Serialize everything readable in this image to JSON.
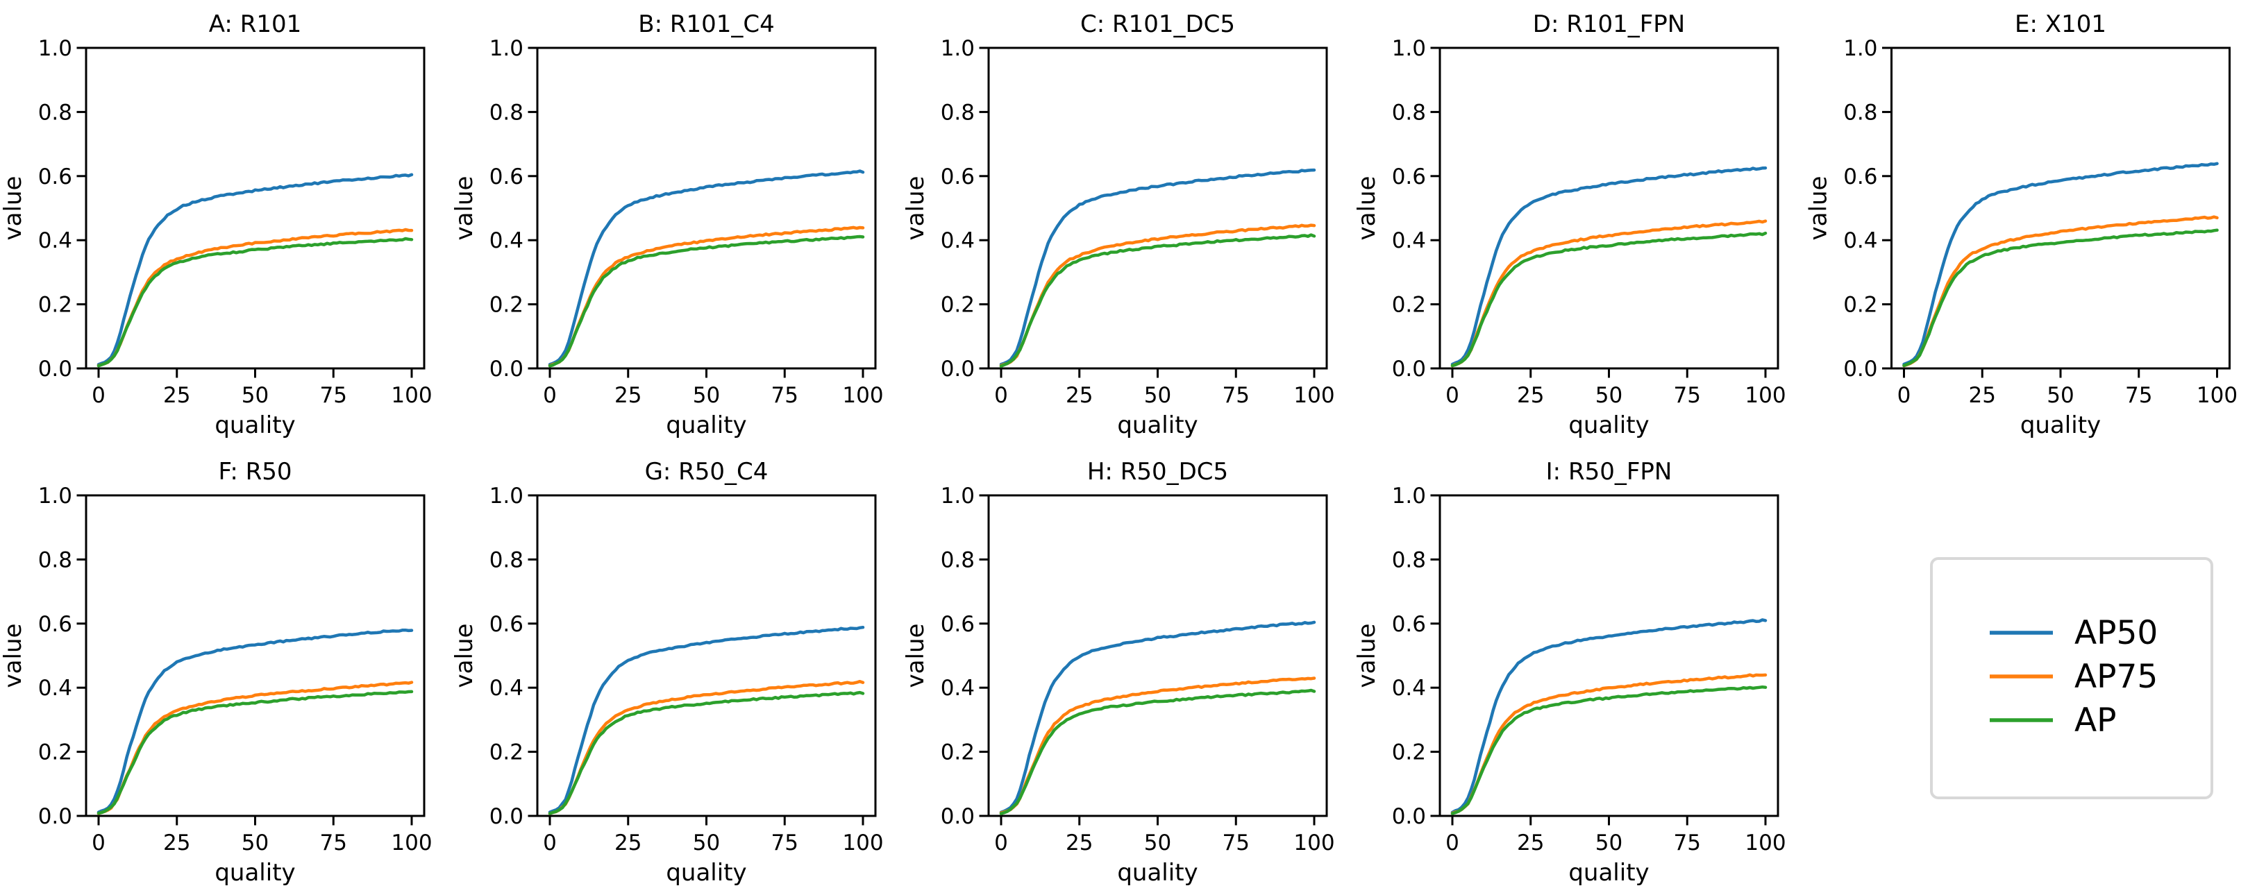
{
  "figure": {
    "background": "#ffffff",
    "rows": 2,
    "cols": 5
  },
  "chart_data": {
    "type": "line",
    "grid": false,
    "xlabel": "quality",
    "ylabel": "value",
    "xlim": [
      0,
      100
    ],
    "ylim": [
      0.0,
      1.0
    ],
    "xticks": [
      0,
      25,
      50,
      75,
      100
    ],
    "xticklabels": [
      "0",
      "25",
      "50",
      "75",
      "100"
    ],
    "yticks": [
      0.0,
      0.2,
      0.4,
      0.6,
      0.8,
      1.0
    ],
    "yticklabels": [
      "0.0",
      "0.2",
      "0.4",
      "0.6",
      "0.8",
      "1.0"
    ],
    "x": [
      0,
      5,
      10,
      15,
      20,
      25,
      30,
      35,
      40,
      45,
      50,
      55,
      60,
      65,
      70,
      75,
      80,
      85,
      90,
      95,
      100
    ],
    "legend": {
      "position": "lower-right-cell",
      "border_color": "#d8d8d8",
      "background": "#ffffff",
      "entries": [
        {
          "label": "AP50",
          "color": "#1f77b4"
        },
        {
          "label": "AP75",
          "color": "#ff7f0e"
        },
        {
          "label": "AP",
          "color": "#2ca02c"
        }
      ]
    },
    "subplots": [
      {
        "title": "A: R101",
        "series": [
          {
            "name": "AP50",
            "color": "#1f77b4",
            "values": [
              0.012,
              0.054,
              0.223,
              0.38,
              0.458,
              0.497,
              0.517,
              0.529,
              0.54,
              0.547,
              0.555,
              0.561,
              0.567,
              0.573,
              0.578,
              0.583,
              0.588,
              0.592,
              0.596,
              0.6,
              0.603
            ]
          },
          {
            "name": "AP75",
            "color": "#ff7f0e",
            "values": [
              0.009,
              0.039,
              0.153,
              0.259,
              0.315,
              0.341,
              0.356,
              0.368,
              0.377,
              0.384,
              0.391,
              0.396,
              0.401,
              0.406,
              0.41,
              0.415,
              0.419,
              0.422,
              0.426,
              0.429,
              0.432
            ]
          },
          {
            "name": "AP",
            "color": "#2ca02c",
            "values": [
              0.008,
              0.04,
              0.149,
              0.25,
              0.303,
              0.329,
              0.343,
              0.352,
              0.359,
              0.364,
              0.37,
              0.374,
              0.379,
              0.383,
              0.386,
              0.39,
              0.393,
              0.396,
              0.398,
              0.401,
              0.404
            ]
          }
        ]
      },
      {
        "title": "B: R101_C4",
        "series": [
          {
            "name": "AP50",
            "color": "#1f77b4",
            "values": [
              0.012,
              0.055,
              0.227,
              0.387,
              0.467,
              0.507,
              0.527,
              0.539,
              0.549,
              0.557,
              0.565,
              0.572,
              0.578,
              0.583,
              0.589,
              0.594,
              0.599,
              0.603,
              0.607,
              0.611,
              0.614
            ]
          },
          {
            "name": "AP75",
            "color": "#ff7f0e",
            "values": [
              0.009,
              0.04,
              0.156,
              0.264,
              0.321,
              0.348,
              0.363,
              0.375,
              0.384,
              0.391,
              0.398,
              0.403,
              0.409,
              0.414,
              0.418,
              0.422,
              0.426,
              0.43,
              0.433,
              0.437,
              0.44
            ]
          },
          {
            "name": "AP",
            "color": "#2ca02c",
            "values": [
              0.008,
              0.041,
              0.152,
              0.255,
              0.308,
              0.335,
              0.349,
              0.358,
              0.365,
              0.371,
              0.376,
              0.381,
              0.385,
              0.389,
              0.393,
              0.396,
              0.399,
              0.402,
              0.405,
              0.408,
              0.411
            ]
          }
        ]
      },
      {
        "title": "C: R101_DC5",
        "series": [
          {
            "name": "AP50",
            "color": "#1f77b4",
            "values": [
              0.012,
              0.056,
              0.229,
              0.389,
              0.47,
              0.51,
              0.53,
              0.543,
              0.553,
              0.561,
              0.569,
              0.575,
              0.582,
              0.587,
              0.593,
              0.598,
              0.603,
              0.607,
              0.611,
              0.615,
              0.618
            ]
          },
          {
            "name": "AP75",
            "color": "#ff7f0e",
            "values": [
              0.009,
              0.04,
              0.159,
              0.268,
              0.326,
              0.353,
              0.369,
              0.381,
              0.39,
              0.397,
              0.404,
              0.41,
              0.415,
              0.42,
              0.425,
              0.429,
              0.433,
              0.437,
              0.44,
              0.444,
              0.447
            ]
          },
          {
            "name": "AP",
            "color": "#2ca02c",
            "values": [
              0.008,
              0.042,
              0.154,
              0.257,
              0.311,
              0.338,
              0.352,
              0.361,
              0.369,
              0.374,
              0.38,
              0.384,
              0.389,
              0.393,
              0.397,
              0.4,
              0.403,
              0.406,
              0.409,
              0.412,
              0.415
            ]
          }
        ]
      },
      {
        "title": "D: R101_FPN",
        "series": [
          {
            "name": "AP50",
            "color": "#1f77b4",
            "values": [
              0.013,
              0.056,
              0.231,
              0.394,
              0.475,
              0.516,
              0.536,
              0.549,
              0.559,
              0.568,
              0.575,
              0.582,
              0.588,
              0.594,
              0.599,
              0.604,
              0.609,
              0.614,
              0.618,
              0.622,
              0.625
            ]
          },
          {
            "name": "AP75",
            "color": "#ff7f0e",
            "values": [
              0.009,
              0.041,
              0.163,
              0.275,
              0.335,
              0.363,
              0.379,
              0.391,
              0.4,
              0.408,
              0.415,
              0.421,
              0.426,
              0.431,
              0.436,
              0.441,
              0.445,
              0.448,
              0.452,
              0.456,
              0.459
            ]
          },
          {
            "name": "AP",
            "color": "#2ca02c",
            "values": [
              0.008,
              0.042,
              0.155,
              0.26,
              0.315,
              0.342,
              0.356,
              0.366,
              0.373,
              0.379,
              0.384,
              0.389,
              0.394,
              0.398,
              0.402,
              0.405,
              0.408,
              0.411,
              0.414,
              0.417,
              0.42
            ]
          }
        ]
      },
      {
        "title": "E: X101",
        "series": [
          {
            "name": "AP50",
            "color": "#1f77b4",
            "values": [
              0.013,
              0.057,
              0.236,
              0.401,
              0.484,
              0.526,
              0.547,
              0.559,
              0.57,
              0.578,
              0.586,
              0.593,
              0.599,
              0.605,
              0.611,
              0.616,
              0.621,
              0.626,
              0.63,
              0.634,
              0.637
            ]
          },
          {
            "name": "AP75",
            "color": "#ff7f0e",
            "values": [
              0.009,
              0.042,
              0.168,
              0.283,
              0.345,
              0.373,
              0.389,
              0.402,
              0.412,
              0.42,
              0.427,
              0.433,
              0.438,
              0.444,
              0.448,
              0.453,
              0.457,
              0.461,
              0.465,
              0.469,
              0.472
            ]
          },
          {
            "name": "AP",
            "color": "#2ca02c",
            "values": [
              0.009,
              0.043,
              0.159,
              0.267,
              0.323,
              0.35,
              0.365,
              0.374,
              0.382,
              0.388,
              0.393,
              0.398,
              0.403,
              0.407,
              0.411,
              0.415,
              0.418,
              0.421,
              0.424,
              0.427,
              0.43
            ]
          }
        ]
      },
      {
        "title": "F: R50",
        "series": [
          {
            "name": "AP50",
            "color": "#1f77b4",
            "values": [
              0.012,
              0.052,
              0.215,
              0.365,
              0.441,
              0.479,
              0.498,
              0.509,
              0.519,
              0.527,
              0.534,
              0.54,
              0.546,
              0.551,
              0.556,
              0.561,
              0.566,
              0.57,
              0.574,
              0.577,
              0.58
            ]
          },
          {
            "name": "AP75",
            "color": "#ff7f0e",
            "values": [
              0.008,
              0.037,
              0.147,
              0.249,
              0.303,
              0.328,
              0.342,
              0.354,
              0.362,
              0.369,
              0.375,
              0.381,
              0.386,
              0.39,
              0.394,
              0.398,
              0.402,
              0.405,
              0.409,
              0.412,
              0.415
            ]
          },
          {
            "name": "AP",
            "color": "#2ca02c",
            "values": [
              0.008,
              0.039,
              0.143,
              0.24,
              0.29,
              0.315,
              0.328,
              0.337,
              0.344,
              0.349,
              0.354,
              0.358,
              0.363,
              0.366,
              0.37,
              0.373,
              0.376,
              0.379,
              0.382,
              0.384,
              0.387
            ]
          }
        ]
      },
      {
        "title": "G: R50_C4",
        "series": [
          {
            "name": "AP50",
            "color": "#1f77b4",
            "values": [
              0.012,
              0.053,
              0.217,
              0.37,
              0.446,
              0.484,
              0.504,
              0.515,
              0.525,
              0.533,
              0.54,
              0.547,
              0.552,
              0.558,
              0.563,
              0.568,
              0.572,
              0.576,
              0.581,
              0.584,
              0.587
            ]
          },
          {
            "name": "AP75",
            "color": "#ff7f0e",
            "values": [
              0.008,
              0.038,
              0.148,
              0.251,
              0.305,
              0.33,
              0.345,
              0.356,
              0.364,
              0.372,
              0.378,
              0.383,
              0.388,
              0.393,
              0.397,
              0.401,
              0.405,
              0.408,
              0.412,
              0.415,
              0.418
            ]
          },
          {
            "name": "AP",
            "color": "#2ca02c",
            "values": [
              0.008,
              0.038,
              0.142,
              0.238,
              0.288,
              0.313,
              0.326,
              0.334,
              0.341,
              0.346,
              0.351,
              0.356,
              0.36,
              0.364,
              0.367,
              0.37,
              0.373,
              0.376,
              0.379,
              0.381,
              0.384
            ]
          }
        ]
      },
      {
        "title": "H: R50_DC5",
        "series": [
          {
            "name": "AP50",
            "color": "#1f77b4",
            "values": [
              0.012,
              0.054,
              0.223,
              0.38,
              0.458,
              0.497,
              0.517,
              0.529,
              0.54,
              0.547,
              0.555,
              0.561,
              0.567,
              0.573,
              0.578,
              0.583,
              0.588,
              0.592,
              0.597,
              0.6,
              0.603
            ]
          },
          {
            "name": "AP75",
            "color": "#ff7f0e",
            "values": [
              0.009,
              0.039,
              0.153,
              0.258,
              0.314,
              0.34,
              0.355,
              0.366,
              0.375,
              0.382,
              0.389,
              0.394,
              0.399,
              0.404,
              0.409,
              0.413,
              0.417,
              0.42,
              0.424,
              0.427,
              0.43
            ]
          },
          {
            "name": "AP",
            "color": "#2ca02c",
            "values": [
              0.008,
              0.039,
              0.144,
              0.242,
              0.293,
              0.318,
              0.331,
              0.34,
              0.346,
              0.352,
              0.357,
              0.361,
              0.365,
              0.369,
              0.373,
              0.376,
              0.379,
              0.382,
              0.385,
              0.387,
              0.39
            ]
          }
        ]
      },
      {
        "title": "I: R50_FPN",
        "series": [
          {
            "name": "AP50",
            "color": "#1f77b4",
            "values": [
              0.012,
              0.055,
              0.226,
              0.384,
              0.464,
              0.503,
              0.523,
              0.536,
              0.546,
              0.554,
              0.561,
              0.568,
              0.574,
              0.58,
              0.585,
              0.59,
              0.595,
              0.599,
              0.603,
              0.607,
              0.61
            ]
          },
          {
            "name": "AP75",
            "color": "#ff7f0e",
            "values": [
              0.009,
              0.04,
              0.157,
              0.265,
              0.322,
              0.348,
              0.364,
              0.376,
              0.385,
              0.392,
              0.399,
              0.404,
              0.41,
              0.415,
              0.419,
              0.423,
              0.427,
              0.431,
              0.434,
              0.438,
              0.441
            ]
          },
          {
            "name": "AP",
            "color": "#2ca02c",
            "values": [
              0.008,
              0.04,
              0.149,
              0.249,
              0.302,
              0.328,
              0.341,
              0.35,
              0.357,
              0.363,
              0.368,
              0.372,
              0.377,
              0.381,
              0.384,
              0.388,
              0.391,
              0.394,
              0.397,
              0.399,
              0.402
            ]
          }
        ]
      }
    ]
  }
}
